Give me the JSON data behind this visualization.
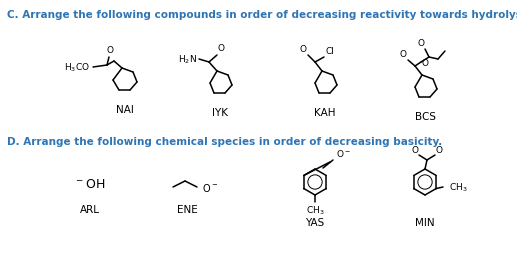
{
  "title_c": "C. Arrange the following compounds in order of decreasing reactivity towards hydrolysis.",
  "title_d": "D. Arrange the following chemical species in order of decreasing basicity.",
  "title_color": "#2e75b6",
  "labels_row1": [
    "NAI",
    "IYK",
    "KAH",
    "BCS"
  ],
  "labels_row2": [
    "ARL",
    "ENE",
    "YAS",
    "MIN"
  ],
  "label_color": "#000000",
  "bg_color": "#ffffff",
  "figsize": [
    5.17,
    2.55
  ],
  "dpi": 100
}
